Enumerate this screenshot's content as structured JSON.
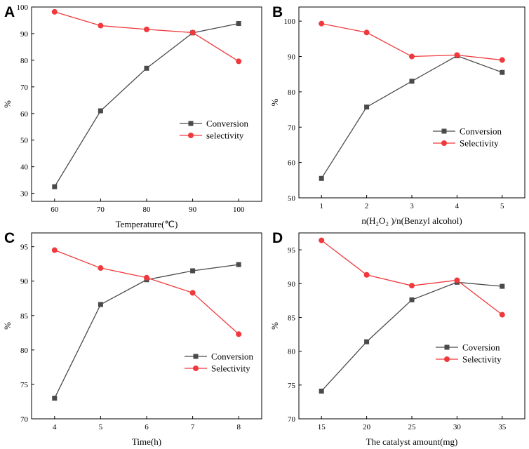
{
  "colors": {
    "conversion": "#4a4a4a",
    "selectivity": "#f0393c",
    "axis": "#000000"
  },
  "chart_data": [
    {
      "panel": "A",
      "type": "line",
      "x": [
        60,
        70,
        80,
        90,
        100
      ],
      "xticks": [
        60,
        70,
        80,
        90,
        100
      ],
      "xlim": [
        55,
        105
      ],
      "yticks": [
        30,
        40,
        50,
        60,
        70,
        80,
        90,
        100
      ],
      "ylim": [
        27,
        100
      ],
      "xlabel": "Temperature(℃)",
      "ylabel": "%",
      "series": [
        {
          "name": "Conversion",
          "marker": "square",
          "color": "#4a4a4a",
          "values": [
            32.5,
            61,
            77,
            90.3,
            93.8
          ]
        },
        {
          "name": "selectivity",
          "marker": "circle",
          "color": "#f0393c",
          "values": [
            98.2,
            93,
            91.6,
            90.4,
            79.6
          ]
        }
      ]
    },
    {
      "panel": "B",
      "type": "line",
      "x": [
        1,
        2,
        3,
        4,
        5
      ],
      "xticks": [
        1,
        2,
        3,
        4,
        5
      ],
      "xlim": [
        0.5,
        5.5
      ],
      "yticks": [
        50,
        60,
        70,
        80,
        90,
        100
      ],
      "ylim": [
        50,
        104
      ],
      "xlabel": "n(H₂O₂ )/n(Benzyl alcohol)",
      "ylabel": "%",
      "series": [
        {
          "name": "Conversion",
          "marker": "square",
          "color": "#4a4a4a",
          "values": [
            55.5,
            75.7,
            83,
            90.2,
            85.5
          ]
        },
        {
          "name": "Selectivity",
          "marker": "circle",
          "color": "#f0393c",
          "values": [
            99.3,
            96.8,
            90,
            90.4,
            89
          ]
        }
      ]
    },
    {
      "panel": "C",
      "type": "line",
      "x": [
        4,
        5,
        6,
        7,
        8
      ],
      "xticks": [
        4,
        5,
        6,
        7,
        8
      ],
      "xlim": [
        3.5,
        8.5
      ],
      "yticks": [
        70,
        75,
        80,
        85,
        90,
        95
      ],
      "ylim": [
        70,
        97
      ],
      "xlabel": "Time(h)",
      "ylabel": "%",
      "series": [
        {
          "name": "Conversion",
          "marker": "square",
          "color": "#4a4a4a",
          "values": [
            73,
            86.6,
            90.2,
            91.5,
            92.4
          ]
        },
        {
          "name": "Selectivity",
          "marker": "circle",
          "color": "#f0393c",
          "values": [
            94.5,
            91.9,
            90.5,
            88.3,
            82.3
          ]
        }
      ]
    },
    {
      "panel": "D",
      "type": "line",
      "x": [
        15,
        20,
        25,
        30,
        35
      ],
      "xticks": [
        15,
        20,
        25,
        30,
        35
      ],
      "xlim": [
        12.5,
        37.5
      ],
      "yticks": [
        70,
        75,
        80,
        85,
        90,
        95
      ],
      "ylim": [
        70,
        97.5
      ],
      "xlabel": "The  catalyst amount(mg)",
      "ylabel": "%",
      "series": [
        {
          "name": "Coversion",
          "marker": "square",
          "color": "#4a4a4a",
          "values": [
            74.1,
            81.4,
            87.6,
            90.2,
            89.6
          ]
        },
        {
          "name": "Selectivity",
          "marker": "circle",
          "color": "#f0393c",
          "values": [
            96.4,
            91.3,
            89.7,
            90.5,
            85.4
          ]
        }
      ]
    }
  ]
}
